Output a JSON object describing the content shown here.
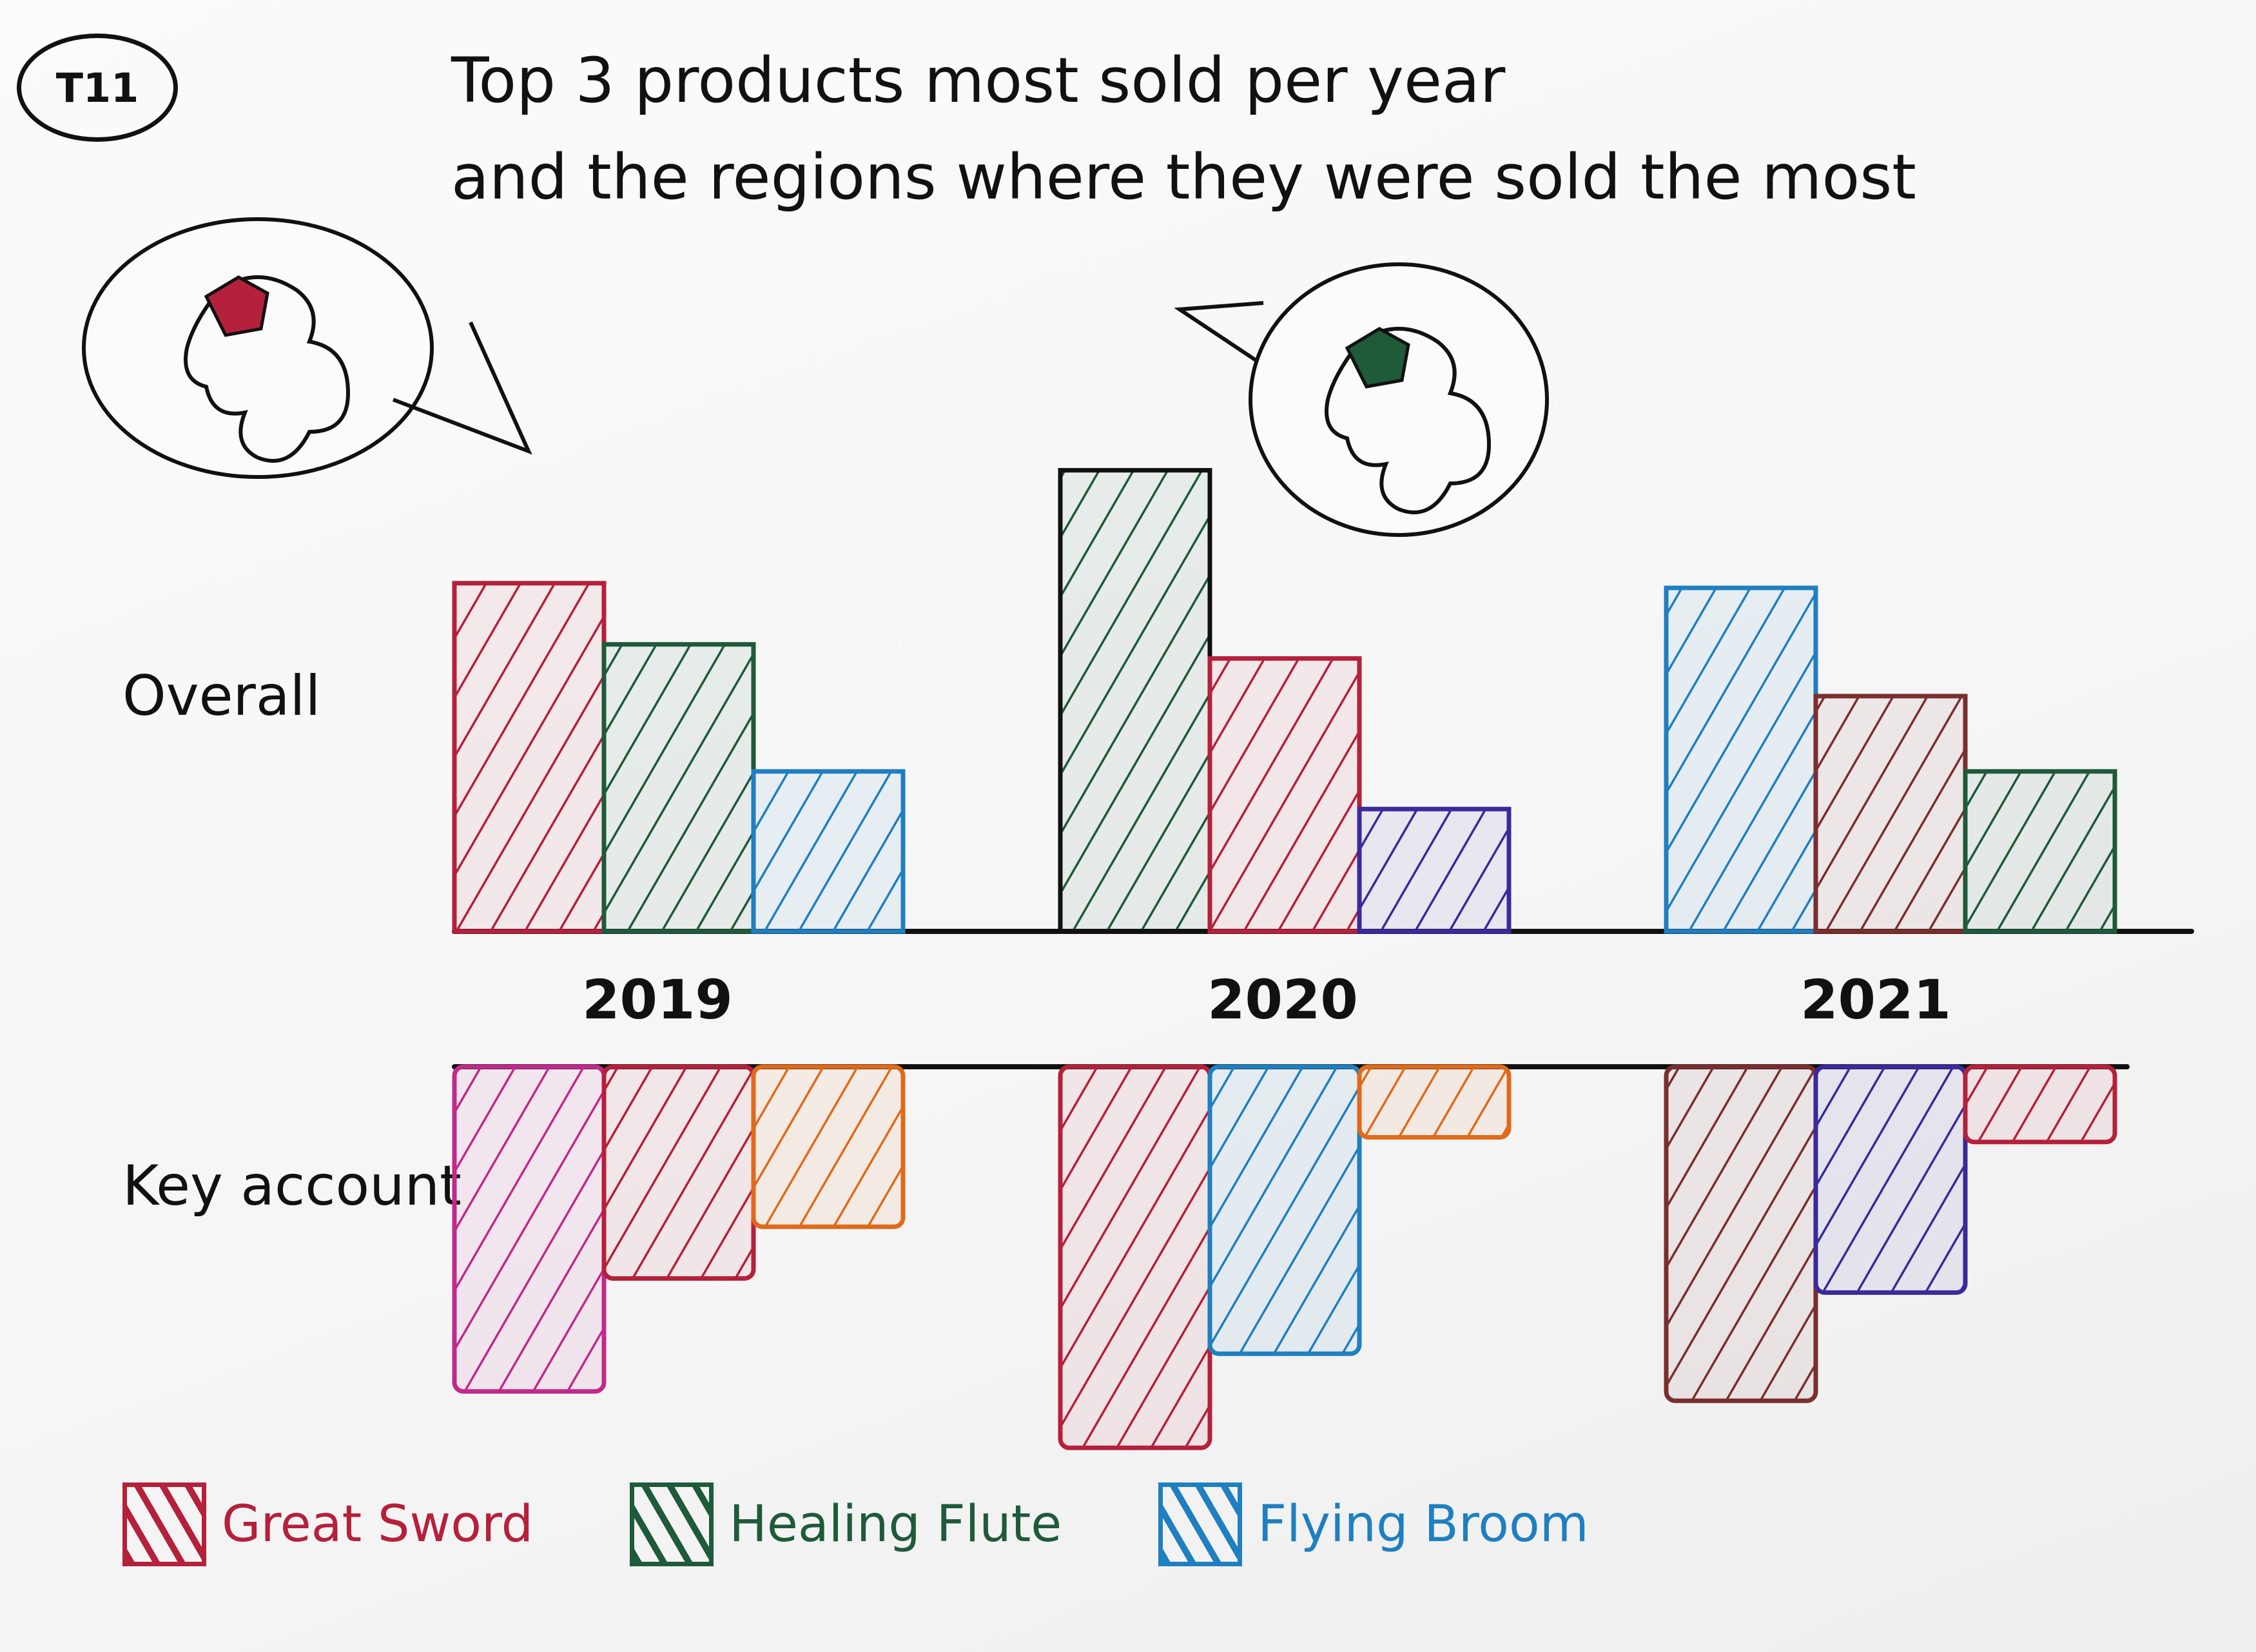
{
  "header": {
    "stamp": "T11",
    "title_line1": "Top 3 products most sold per year",
    "title_line2": "and the regions where they were sold the most"
  },
  "rows": {
    "overall": "Overall",
    "key_account": "Key account"
  },
  "chart_data": {
    "type": "bar",
    "categories": [
      "2019",
      "2020",
      "2021"
    ],
    "panels": [
      {
        "name": "Overall",
        "direction": "up",
        "bars": [
          [
            {
              "series": "Great Sword",
              "color": "#b5203a",
              "value": 7.4
            },
            {
              "series": "Healing Flute",
              "color": "#1f5a3a",
              "value": 6.1
            },
            {
              "series": "Flying Broom",
              "color": "#1f7fc0",
              "value": 3.4
            }
          ],
          [
            {
              "series": "Healing Flute",
              "color": "#1f5a3a",
              "value": 9.8
            },
            {
              "series": "Great Sword",
              "color": "#b5203a",
              "value": 5.8
            },
            {
              "series": "",
              "color": "#3a2a9a",
              "value": 2.6
            }
          ],
          [
            {
              "series": "Flying Broom",
              "color": "#1f7fc0",
              "value": 7.3
            },
            {
              "series": "",
              "color": "#7a2e2e",
              "value": 5.0
            },
            {
              "series": "Healing Flute",
              "color": "#1f5a3a",
              "value": 3.4
            }
          ]
        ]
      },
      {
        "name": "Key account",
        "direction": "down",
        "bars": [
          [
            {
              "series": "",
              "color": "#c02a8a",
              "value": 6.9
            },
            {
              "series": "Great Sword",
              "color": "#b5203a",
              "value": 4.5
            },
            {
              "series": "",
              "color": "#e06a1a",
              "value": 3.4
            }
          ],
          [
            {
              "series": "Great Sword",
              "color": "#b5203a",
              "value": 8.1
            },
            {
              "series": "Flying Broom",
              "color": "#1f7fc0",
              "value": 6.1
            },
            {
              "series": "",
              "color": "#e06a1a",
              "value": 1.5
            }
          ],
          [
            {
              "series": "",
              "color": "#7a2e2e",
              "value": 7.1
            },
            {
              "series": "",
              "color": "#3a2a9a",
              "value": 4.8
            },
            {
              "series": "Great Sword",
              "color": "#b5203a",
              "value": 1.6
            }
          ]
        ]
      }
    ],
    "legend": [
      {
        "name": "Great Sword",
        "color": "#b5203a"
      },
      {
        "name": "Healing Flute",
        "color": "#1f5a3a"
      },
      {
        "name": "Flying Broom",
        "color": "#1f7fc0"
      }
    ],
    "legend_position": "bottom-left",
    "callouts": [
      {
        "year": "2019",
        "icon": "region-map-icon",
        "highlight_color": "#b5203a"
      },
      {
        "year": "2020",
        "icon": "region-map-icon",
        "highlight_color": "#1f5a3a"
      }
    ]
  }
}
